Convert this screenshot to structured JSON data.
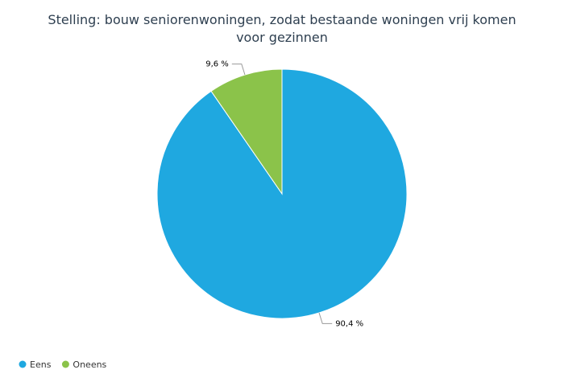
{
  "chart_data": {
    "type": "pie",
    "title": "Stelling: bouw seniorenwoningen, zodat bestaande woningen vrij komen voor gezinnen",
    "categories": [
      "Eens",
      "Oneens"
    ],
    "values": [
      90.4,
      9.6
    ],
    "value_labels": [
      "90,4 %",
      "9,6 %"
    ],
    "colors": [
      "#1fa8e0",
      "#8bc34a"
    ],
    "legend": "bottom-left"
  }
}
